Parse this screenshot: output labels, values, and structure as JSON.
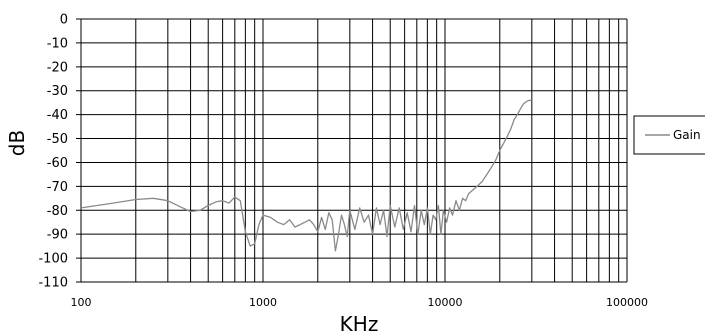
{
  "chart_data": {
    "type": "line",
    "title": "",
    "xlabel": "KHz",
    "ylabel": "dB",
    "xscale": "log",
    "xlim": [
      100,
      100000
    ],
    "ylim": [
      -110,
      0
    ],
    "x_ticks": [
      100,
      1000,
      10000,
      100000
    ],
    "x_tick_labels": [
      "100",
      "1000",
      "10000",
      "100000"
    ],
    "y_ticks": [
      0,
      -10,
      -20,
      -30,
      -40,
      -50,
      -60,
      -70,
      -80,
      -90,
      -100,
      -110
    ],
    "y_tick_labels": [
      "0",
      "-10",
      "-20",
      "-30",
      "-40",
      "-50",
      "-60",
      "-70",
      "-80",
      "-90",
      "-100",
      "-110"
    ],
    "grid": true,
    "legend_position": "right",
    "series": [
      {
        "name": "Gain",
        "color": "#8a8a8a",
        "x": [
          100,
          150,
          200,
          250,
          300,
          350,
          400,
          450,
          500,
          550,
          600,
          650,
          700,
          750,
          800,
          850,
          900,
          950,
          1000,
          1100,
          1200,
          1300,
          1400,
          1500,
          1600,
          1700,
          1800,
          1900,
          2000,
          2100,
          2200,
          2300,
          2400,
          2500,
          2600,
          2700,
          2800,
          2900,
          3000,
          3200,
          3400,
          3600,
          3800,
          4000,
          4200,
          4400,
          4600,
          4800,
          5000,
          5300,
          5600,
          5900,
          6200,
          6500,
          6800,
          7100,
          7400,
          7700,
          8000,
          8300,
          8600,
          8900,
          9200,
          9500,
          9800,
          10200,
          10600,
          11000,
          11500,
          12000,
          12500,
          13000,
          13500,
          14000,
          15000,
          16000,
          17000,
          18000,
          19000,
          20000,
          21000,
          22000,
          23000,
          24000,
          25000,
          26000,
          27000,
          28000,
          29000,
          30000
        ],
        "y": [
          -79,
          -77,
          -75.5,
          -75,
          -76,
          -78.5,
          -80.5,
          -80,
          -78,
          -76.5,
          -76,
          -77,
          -74.5,
          -76,
          -89,
          -95,
          -94,
          -86,
          -82,
          -83,
          -85,
          -86,
          -84,
          -87,
          -86,
          -85,
          -84,
          -86,
          -89,
          -83,
          -88,
          -81,
          -84,
          -97,
          -90,
          -82,
          -86,
          -91,
          -80,
          -88,
          -79,
          -85,
          -82,
          -90,
          -79,
          -86,
          -80,
          -91,
          -78,
          -87,
          -79,
          -88,
          -81,
          -89,
          -78,
          -90,
          -80,
          -86,
          -79,
          -90,
          -82,
          -84,
          -78,
          -90,
          -80,
          -85,
          -79,
          -82,
          -76,
          -80,
          -75,
          -76,
          -73,
          -72,
          -70,
          -68,
          -65,
          -62,
          -59,
          -55,
          -52,
          -49,
          -46,
          -42,
          -40,
          -37.5,
          -35.5,
          -34.5,
          -34,
          -34
        ]
      }
    ]
  }
}
